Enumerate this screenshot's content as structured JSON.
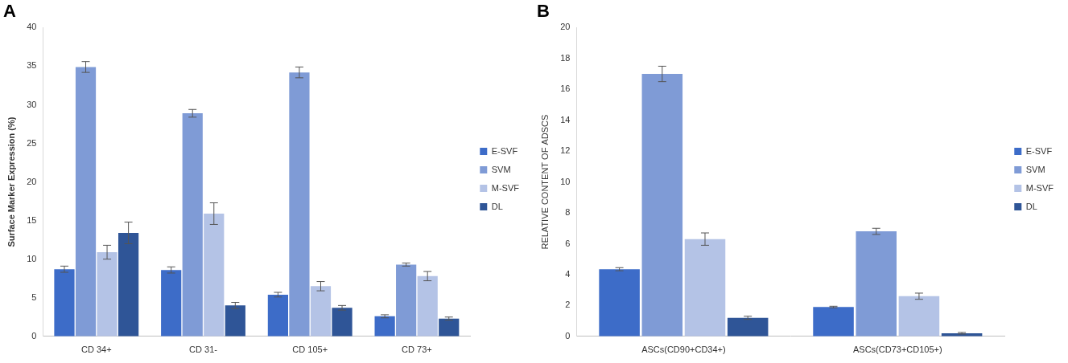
{
  "chart_data": [
    {
      "type": "bar",
      "title": "A",
      "y_label": "Surface Marker Expression (%)",
      "categories": [
        "CD 34+",
        "CD 31-",
        "CD 105+",
        "CD 73+"
      ],
      "series": [
        {
          "name": "E-SVF",
          "color": "#3d6cc8",
          "values": [
            8.7,
            8.6,
            5.4,
            2.6
          ],
          "errors": [
            0.4,
            0.4,
            0.3,
            0.2
          ]
        },
        {
          "name": "SVM",
          "color": "#7f9bd6",
          "values": [
            34.9,
            28.9,
            34.2,
            9.3
          ],
          "errors": [
            0.7,
            0.5,
            0.7,
            0.2
          ]
        },
        {
          "name": "M-SVF",
          "color": "#b4c3e6",
          "values": [
            10.9,
            15.9,
            6.5,
            7.8
          ],
          "errors": [
            0.9,
            1.4,
            0.6,
            0.6
          ]
        },
        {
          "name": "DL",
          "color": "#2f5597",
          "values": [
            13.4,
            4.0,
            3.7,
            2.3
          ],
          "errors": [
            1.4,
            0.4,
            0.3,
            0.2
          ]
        }
      ],
      "ylim": [
        0,
        40
      ],
      "yticks": [
        0,
        5,
        10,
        15,
        20,
        25,
        30,
        35,
        40
      ],
      "grid": false,
      "legend": "right"
    },
    {
      "type": "bar",
      "title": "B",
      "y_label": "RELATIVE CONTENT OF ADSCS",
      "categories": [
        "ASCs(CD90+CD34+)",
        "ASCs(CD73+CD105+)"
      ],
      "series": [
        {
          "name": "E-SVF",
          "color": "#3d6cc8",
          "values": [
            4.35,
            1.9
          ],
          "errors": [
            0.1,
            0.05
          ]
        },
        {
          "name": "SVM",
          "color": "#7f9bd6",
          "values": [
            17.0,
            6.8
          ],
          "errors": [
            0.5,
            0.2
          ]
        },
        {
          "name": "M-SVF",
          "color": "#b4c3e6",
          "values": [
            6.3,
            2.6
          ],
          "errors": [
            0.4,
            0.2
          ]
        },
        {
          "name": "DL",
          "color": "#2f5597",
          "values": [
            1.2,
            0.2
          ],
          "errors": [
            0.1,
            0.05
          ]
        }
      ],
      "ylim": [
        0,
        20
      ],
      "yticks": [
        0,
        2,
        4,
        6,
        8,
        10,
        12,
        14,
        16,
        18,
        20
      ],
      "grid": false,
      "legend": "right"
    }
  ]
}
